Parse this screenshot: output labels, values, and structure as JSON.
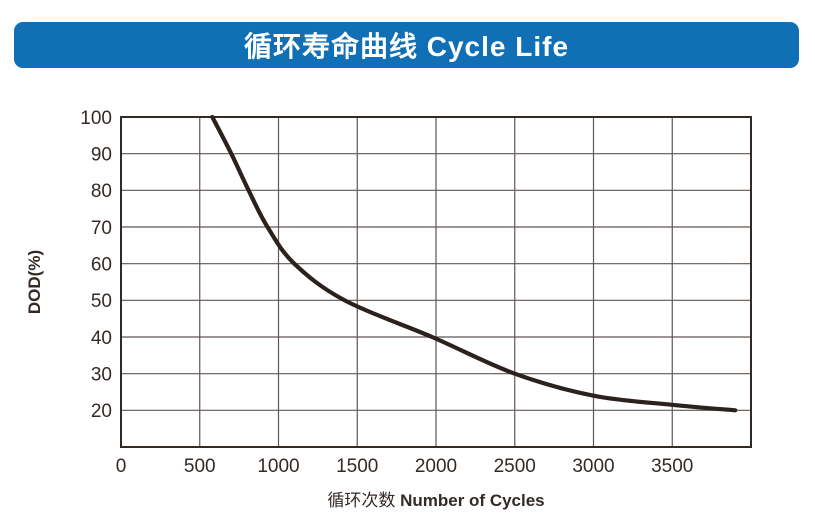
{
  "header": {
    "title": "循环寿命曲线 Cycle Life",
    "bg_color": "#1170b5",
    "text_color": "#ffffff"
  },
  "chart_data": {
    "type": "line",
    "title": "循环寿命曲线 Cycle Life",
    "xlabel_zh": "循环次数",
    "xlabel_en": "Number of Cycles",
    "ylabel": "DOD(%)",
    "xlim": [
      0,
      4000
    ],
    "ylim": [
      10,
      100
    ],
    "grid": true,
    "x_gridline_step": 500,
    "y_gridline_step": 10,
    "x_tick_values": [
      0,
      500,
      1000,
      1500,
      2000,
      2500,
      3000,
      3500
    ],
    "x_tick_labels": [
      "0",
      "500",
      "1000",
      "1500",
      "2000",
      "2500",
      "3000",
      "3500"
    ],
    "y_tick_values": [
      100,
      90,
      80,
      70,
      60,
      50,
      40,
      30,
      20
    ],
    "y_tick_labels": [
      "100",
      "90",
      "80",
      "70",
      "60",
      "50",
      "40",
      "30",
      "20"
    ],
    "series": [
      {
        "name": "cycle-life-curve",
        "color": "#2b211d",
        "x_unit": "cycles",
        "y_unit": "DOD %",
        "points": [
          [
            580,
            100
          ],
          [
            700,
            90
          ],
          [
            810,
            80
          ],
          [
            930,
            70
          ],
          [
            1100,
            60
          ],
          [
            1420,
            50
          ],
          [
            1975,
            40
          ],
          [
            2500,
            30
          ],
          [
            3000,
            24
          ],
          [
            3500,
            21.5
          ],
          [
            3900,
            20
          ]
        ]
      }
    ],
    "colors": {
      "gridline": "#5f5854",
      "axis_border": "#332a26",
      "tick_text": "#332a26"
    }
  }
}
